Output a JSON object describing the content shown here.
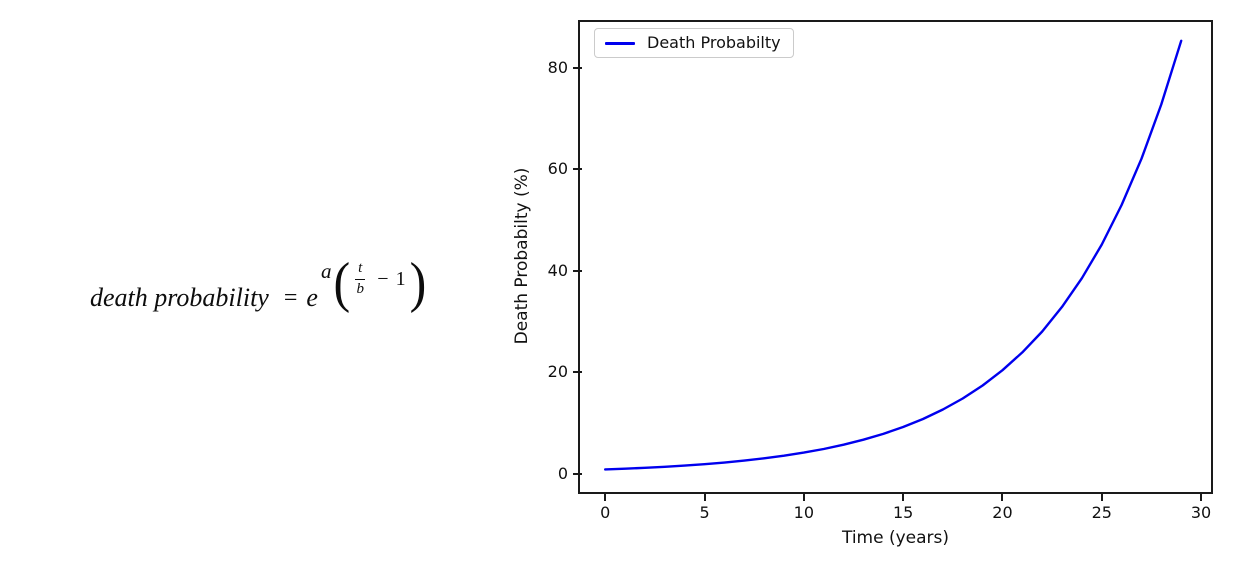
{
  "canvas": {
    "background": "#ffffff"
  },
  "formula": {
    "lhs": "death probability",
    "equals": "=",
    "base": "e",
    "exp_coefficient": "a",
    "exp_open_paren": "(",
    "exp_frac_numerator": "t",
    "exp_frac_denominator": "b",
    "exp_operator": "−",
    "exp_constant": "1",
    "exp_close_paren": ")"
  },
  "chart_data": {
    "type": "line",
    "title": "",
    "xlabel": "Time (years)",
    "ylabel": "Death Probabilty (%)",
    "legend": [
      "Death Probabilty"
    ],
    "legend_position": "upper left",
    "grid": false,
    "line_color": "#0000ee",
    "axis_color": "#1a1a1a",
    "legend_border_color": "#cbcbcb",
    "xlim": [
      -1.27,
      30.5
    ],
    "ylim": [
      -3.6,
      89.0
    ],
    "xticks": [
      0,
      5,
      10,
      15,
      20,
      25,
      30
    ],
    "yticks": [
      0,
      20,
      40,
      60,
      80
    ],
    "series": [
      {
        "name": "Death Probabilty",
        "x": [
          0,
          1,
          2,
          3,
          4,
          5,
          6,
          7,
          8,
          9,
          10,
          11,
          12,
          13,
          14,
          15,
          16,
          17,
          18,
          19,
          20,
          21,
          22,
          23,
          24,
          25,
          26,
          27,
          28,
          29
        ],
        "y": [
          0.85,
          0.99,
          1.17,
          1.37,
          1.6,
          1.88,
          2.2,
          2.58,
          3.03,
          3.55,
          4.16,
          4.88,
          5.71,
          6.7,
          7.85,
          9.21,
          10.79,
          12.65,
          14.83,
          17.39,
          20.39,
          23.9,
          28.02,
          32.86,
          38.52,
          45.16,
          52.94,
          62.07,
          72.76,
          85.3
        ]
      }
    ]
  }
}
